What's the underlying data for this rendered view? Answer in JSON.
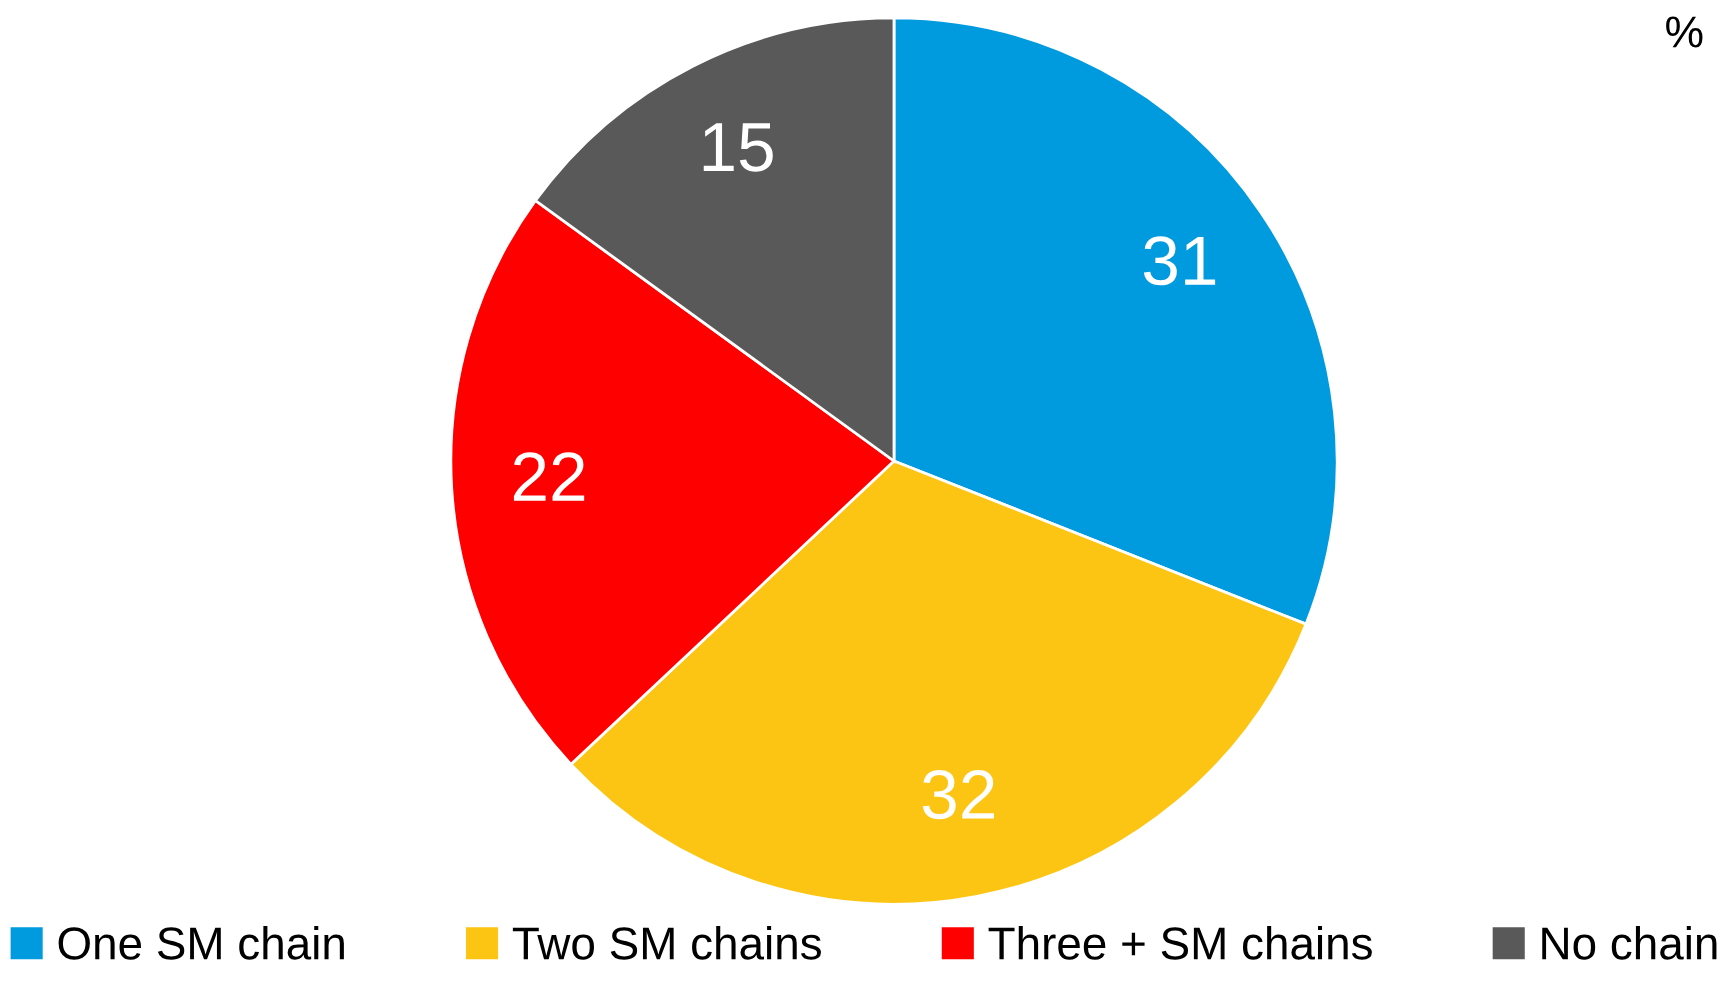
{
  "chart_data": {
    "type": "pie",
    "categories": [
      "One SM chain",
      "Two SM chains",
      "Three + SM chains",
      "No chain"
    ],
    "values": [
      31,
      32,
      22,
      15
    ],
    "colors": [
      "#009ade",
      "#fdc513",
      "#ff0000",
      "#595959"
    ],
    "data_labels": true,
    "legend": "bottom",
    "annotations": [
      "%"
    ]
  }
}
